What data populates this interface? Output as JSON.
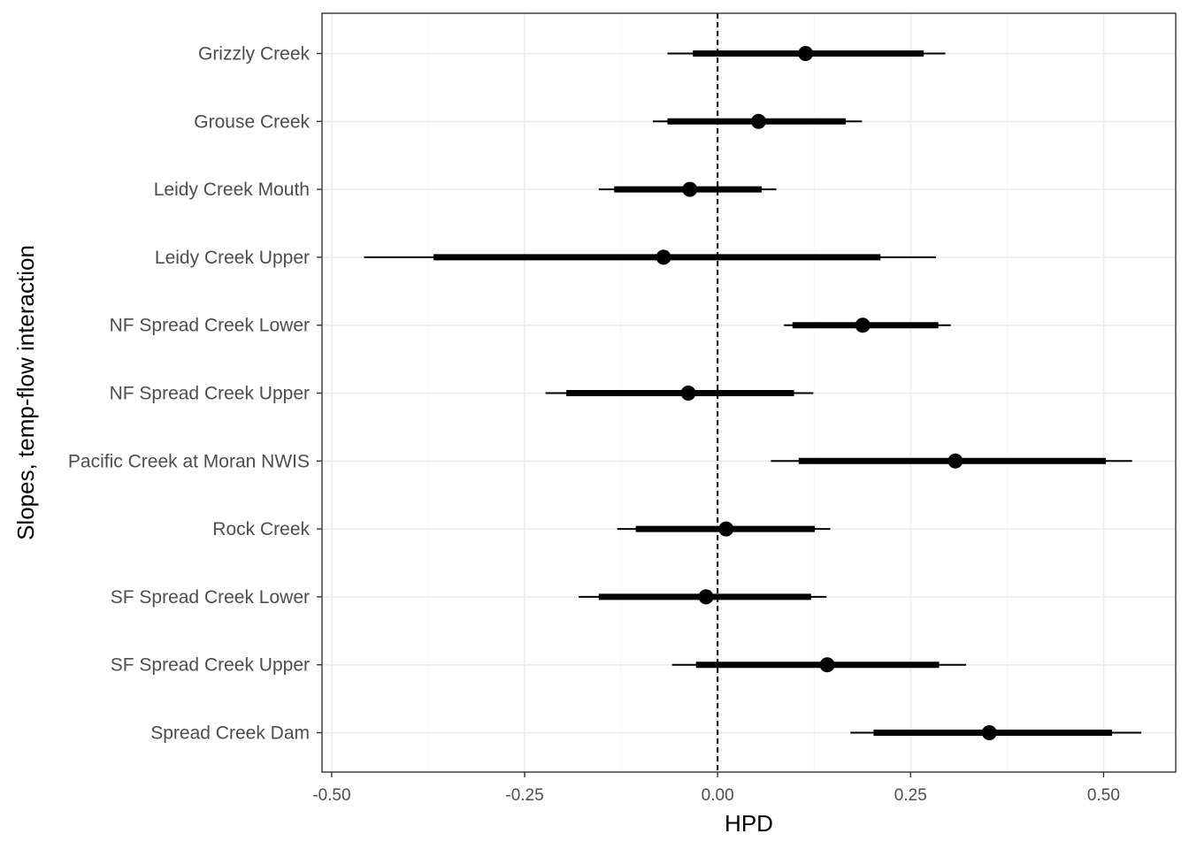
{
  "chart_data": {
    "type": "interval",
    "xlabel": "HPD",
    "ylabel": "Slopes, temp-flow interaction",
    "xlim": [
      -0.5125,
      0.5935
    ],
    "x_ticks": [
      -0.5,
      -0.25,
      0.0,
      0.25,
      0.5
    ],
    "x_tick_labels": [
      "-0.50",
      "-0.25",
      "0.00",
      "0.25",
      "0.50"
    ],
    "reference_line": 0,
    "grid": true,
    "categories": [
      "Grizzly Creek",
      "Grouse Creek",
      "Leidy Creek Mouth",
      "Leidy Creek Upper",
      "NF Spread Creek Lower",
      "NF Spread Creek Upper",
      "Pacific Creek at Moran NWIS",
      "Rock Creek",
      "SF Spread Creek Lower",
      "SF Spread Creek Upper",
      "Spread Creek Dam"
    ],
    "points": [
      {
        "median": 0.114,
        "inner": [
          -0.032,
          0.267
        ],
        "outer": [
          -0.065,
          0.295
        ]
      },
      {
        "median": 0.053,
        "inner": [
          -0.065,
          0.166
        ],
        "outer": [
          -0.084,
          0.187
        ]
      },
      {
        "median": -0.036,
        "inner": [
          -0.134,
          0.057
        ],
        "outer": [
          -0.154,
          0.076
        ]
      },
      {
        "median": -0.07,
        "inner": [
          -0.368,
          0.211
        ],
        "outer": [
          -0.458,
          0.283
        ]
      },
      {
        "median": 0.188,
        "inner": [
          0.097,
          0.286
        ],
        "outer": [
          0.086,
          0.302
        ]
      },
      {
        "median": -0.038,
        "inner": [
          -0.196,
          0.099
        ],
        "outer": [
          -0.223,
          0.124
        ]
      },
      {
        "median": 0.308,
        "inner": [
          0.105,
          0.503
        ],
        "outer": [
          0.069,
          0.537
        ]
      },
      {
        "median": 0.011,
        "inner": [
          -0.106,
          0.126
        ],
        "outer": [
          -0.13,
          0.146
        ]
      },
      {
        "median": -0.015,
        "inner": [
          -0.154,
          0.121
        ],
        "outer": [
          -0.18,
          0.141
        ]
      },
      {
        "median": 0.142,
        "inner": [
          -0.028,
          0.287
        ],
        "outer": [
          -0.059,
          0.322
        ]
      },
      {
        "median": 0.352,
        "inner": [
          0.202,
          0.511
        ],
        "outer": [
          0.172,
          0.549
        ]
      }
    ],
    "colors": {
      "panel_border": "#333333",
      "grid_major": "#ebebeb",
      "grid_minor": "#f5f5f5",
      "mark": "#000000"
    }
  }
}
